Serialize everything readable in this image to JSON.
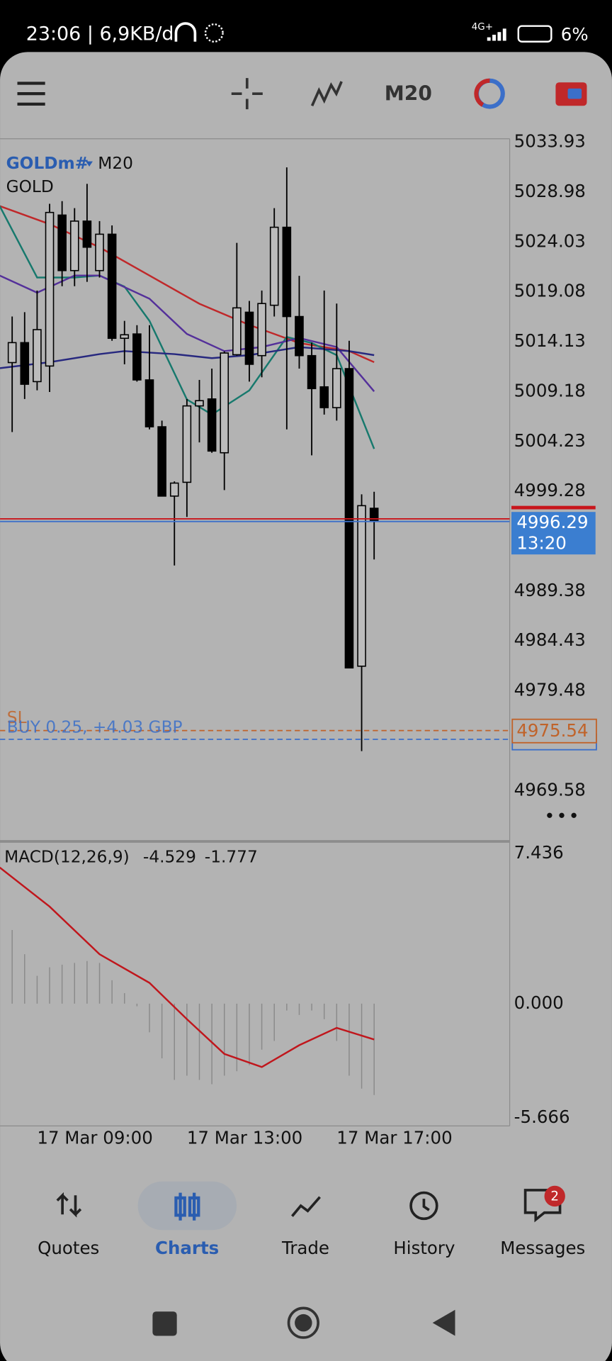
{
  "status_bar": {
    "time_speed": "23:06 | 6,9KB/d",
    "network": "4G+",
    "battery": "6%"
  },
  "toolbar": {
    "timeframe": "M20"
  },
  "chart": {
    "symbol": "GOLDm#",
    "timeframe": "M20",
    "description": "GOLD",
    "candles": {
      "open": [
        5012.06,
        5014.04,
        5010.17,
        5011.72,
        5026.7,
        5021.19,
        5026.1,
        5021.19,
        5024.8,
        5014.47,
        5014.9,
        5010.34,
        5005.69,
        4998.81,
        5000.18,
        5007.76,
        5008.45,
        5003.11,
        5012.84,
        5017.06,
        5012.75,
        5017.75,
        5025.49,
        5016.63,
        5012.75,
        5009.65,
        5007.59,
        5011.46,
        4981.93,
        4997.6
      ],
      "high": [
        5016.63,
        5017.06,
        5019.21,
        5027.82,
        5028.08,
        5027.39,
        5029.8,
        5026.1,
        5025.67,
        5016.2,
        5015.77,
        5015.77,
        5006.3,
        5000.27,
        5008.45,
        5010.34,
        5011.46,
        5013.18,
        5023.94,
        5018.18,
        5019.21,
        5027.39,
        5031.43,
        5020.67,
        5014.04,
        5019.21,
        5017.92,
        5014.22,
        4998.98,
        4999.24
      ],
      "low": [
        5005.17,
        5008.45,
        5009.31,
        5009.14,
        5019.64,
        5019.64,
        5020.07,
        5020.5,
        5014.22,
        5011.89,
        5010.17,
        5005.43,
        4998.81,
        4991.92,
        4996.74,
        5004.14,
        5003.11,
        4999.41,
        5012.75,
        5010.17,
        5010.6,
        5016.63,
        5005.43,
        5011.46,
        5002.85,
        5006.9,
        5006.3,
        4981.76,
        4973.5,
        4992.52
      ],
      "close": [
        5014.04,
        5009.91,
        5015.33,
        5026.96,
        5021.19,
        5026.1,
        5023.51,
        5024.8,
        5014.47,
        5014.82,
        5010.34,
        5005.69,
        4998.81,
        5000.1,
        5007.76,
        5008.28,
        5003.28,
        5013.01,
        5017.49,
        5011.89,
        5017.92,
        5025.49,
        5016.63,
        5012.75,
        5009.48,
        5007.59,
        5011.46,
        4981.76,
        4997.86,
        4996.29
      ]
    },
    "moving_averages": [
      {
        "color": "#c0282a",
        "x": [
          -1,
          3,
          7,
          11,
          15,
          19,
          23,
          27,
          29
        ],
        "values": [
          5027.6,
          5025.8,
          5023.5,
          5020.7,
          5017.9,
          5015.8,
          5014.0,
          5013.2,
          5012.1
        ]
      },
      {
        "color": "#17796d",
        "x": [
          -1,
          2,
          5,
          7,
          9,
          11,
          14,
          16,
          19,
          22,
          24,
          26,
          29
        ],
        "values": [
          5027.6,
          5020.5,
          5020.5,
          5020.7,
          5019.6,
          5016.2,
          5008.4,
          5006.9,
          5009.3,
          5014.6,
          5014.0,
          5012.8,
          5003.5
        ]
      },
      {
        "color": "#54309a",
        "x": [
          -1,
          2,
          5,
          7,
          11,
          14,
          17,
          20,
          23,
          26,
          29
        ],
        "values": [
          5020.7,
          5019.0,
          5020.7,
          5020.7,
          5018.4,
          5014.9,
          5013.2,
          5013.6,
          5014.5,
          5013.6,
          5009.2
        ]
      },
      {
        "color": "#27287f",
        "x": [
          -1,
          3,
          7,
          9,
          13,
          16,
          19,
          23,
          27,
          29
        ],
        "values": [
          5011.5,
          5012.1,
          5012.9,
          5013.2,
          5012.9,
          5012.5,
          5012.8,
          5013.6,
          5013.2,
          5012.8
        ]
      }
    ],
    "ylim": [
      4964.54,
      5034.27
    ],
    "yticks": [
      5033.93,
      5028.98,
      5024.03,
      5019.08,
      5014.13,
      5009.18,
      5004.23,
      4999.28,
      4989.38,
      4984.43,
      4979.48,
      4969.58
    ],
    "bid": {
      "price": 4996.29,
      "time": "13:20"
    },
    "ask": 4996.55,
    "position": {
      "label": "BUY 0.25, +4.03 GBP",
      "price": 4974.67
    },
    "stop_loss": {
      "label": "SL",
      "price": 4975.54
    },
    "time_axis": [
      "17 Mar 09:00",
      "17 Mar 13:00",
      "17 Mar 17:00"
    ]
  },
  "macd": {
    "label": "MACD(12,26,9)",
    "main": -4.529,
    "signal": -1.777,
    "histogram": [
      3.65,
      2.45,
      1.38,
      1.8,
      1.93,
      2.02,
      2.11,
      2.02,
      1.16,
      0.52,
      -0.13,
      -1.42,
      -2.71,
      -3.78,
      -3.57,
      -3.78,
      -3.99,
      -3.57,
      -3.35,
      -3.05,
      -2.28,
      -1.85,
      -0.34,
      -0.56,
      -0.34,
      -0.77,
      -1.85,
      -3.57,
      -4.21,
      -4.529
    ],
    "signal_line": {
      "color": "#c0161c",
      "x": [
        -1,
        3,
        7,
        11,
        14,
        17,
        20,
        23,
        26,
        29
      ],
      "values": [
        6.75,
        4.81,
        2.45,
        1.03,
        -0.77,
        -2.49,
        -3.14,
        -2.06,
        -1.2,
        -1.777
      ]
    },
    "ylim": [
      -6.06,
      8.04
    ],
    "yticks": [
      7.436,
      {
        "value": 0,
        "label": "0.000"
      },
      -5.666
    ]
  },
  "navigation": {
    "tabs": [
      "Quotes",
      "Charts",
      "Trade",
      "History",
      "Messages"
    ],
    "active": "Charts",
    "messages_badge": 2
  }
}
